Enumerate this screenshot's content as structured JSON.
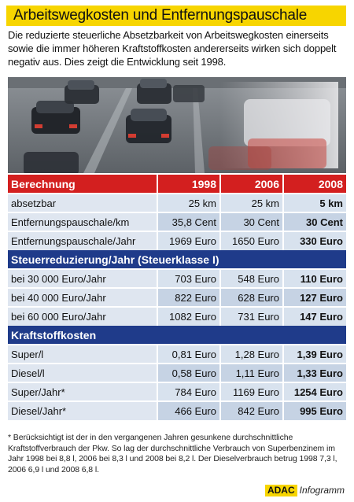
{
  "title": "Arbeitswegkosten und Entfernungspauschale",
  "intro": "Die reduzierte steuerliche Absetzbarkeit von Arbeitswegkosten einerseits sowie die immer höheren Kraftstoffkosten andererseits wirken sich doppelt negativ aus. Dies zeigt die Entwicklung seit 1998.",
  "photo": {
    "icon": "traffic-photo"
  },
  "table": {
    "header": [
      "Berechnung",
      "1998",
      "2006",
      "2008"
    ],
    "sections": [
      {
        "title": "",
        "rows": [
          [
            "absetzbar",
            "25 km",
            "25 km",
            "5 km"
          ],
          [
            "Entfernungspauschale/km",
            "35,8 Cent",
            "30 Cent",
            "30 Cent"
          ],
          [
            "Entfernungspauschale/Jahr",
            "1969 Euro",
            "1650 Euro",
            "330 Euro"
          ]
        ]
      },
      {
        "title": "Steuerreduzierung/Jahr (Steuerklasse I)",
        "rows": [
          [
            "bei 30 000 Euro/Jahr",
            "703 Euro",
            "548 Euro",
            "110 Euro"
          ],
          [
            "bei 40 000 Euro/Jahr",
            "822 Euro",
            "628 Euro",
            "127 Euro"
          ],
          [
            "bei 60 000 Euro/Jahr",
            "1082 Euro",
            "731 Euro",
            "147 Euro"
          ]
        ]
      },
      {
        "title": "Kraftstoffkosten",
        "rows": [
          [
            "Super/l",
            "0,81 Euro",
            "1,28 Euro",
            "1,39 Euro"
          ],
          [
            "Diesel/l",
            "0,58 Euro",
            "1,11 Euro",
            "1,33 Euro"
          ],
          [
            "Super/Jahr*",
            "784 Euro",
            "1169 Euro",
            "1254 Euro"
          ],
          [
            "Diesel/Jahr*",
            "466 Euro",
            "842 Euro",
            "995 Euro"
          ]
        ]
      }
    ]
  },
  "footnote": "* Berücksichtigt ist der in den vergangenen Jahren gesunkene durchschnittliche Kraftstoffverbrauch der Pkw. So lag der durchschnittliche Verbrauch von Superbenzinem im Jahr 1998 bei 8,8 l, 2006 bei 8,3 l und 2008 bei 8,2 l. Der Dieselverbrauch betrug 1998 7,3 l, 2006 6,9 l und 2008 6,8 l.",
  "brand": {
    "logo": "ADAC",
    "suffix": "Infogramm"
  },
  "colors": {
    "title_bg": "#f7d500",
    "header_bg": "#d31f1f",
    "section_bg": "#1f3b8a",
    "row_bg": "#d8e2ee"
  }
}
